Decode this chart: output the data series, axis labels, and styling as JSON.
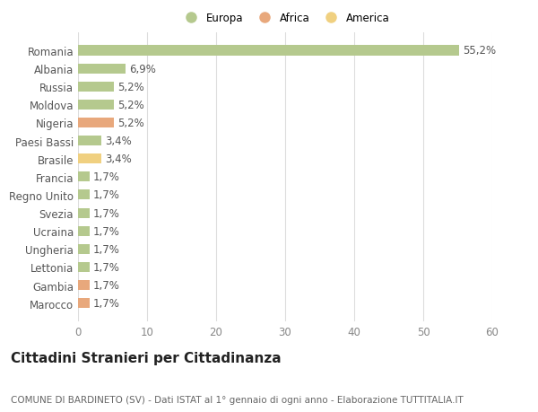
{
  "categories": [
    "Marocco",
    "Gambia",
    "Lettonia",
    "Ungheria",
    "Ucraina",
    "Svezia",
    "Regno Unito",
    "Francia",
    "Brasile",
    "Paesi Bassi",
    "Nigeria",
    "Moldova",
    "Russia",
    "Albania",
    "Romania"
  ],
  "values": [
    1.7,
    1.7,
    1.7,
    1.7,
    1.7,
    1.7,
    1.7,
    1.7,
    3.4,
    3.4,
    5.2,
    5.2,
    5.2,
    6.9,
    55.2
  ],
  "colors": [
    "#e8a87c",
    "#e8a87c",
    "#b5c98e",
    "#b5c98e",
    "#b5c98e",
    "#b5c98e",
    "#b5c98e",
    "#b5c98e",
    "#f0d080",
    "#b5c98e",
    "#e8a87c",
    "#b5c98e",
    "#b5c98e",
    "#b5c98e",
    "#b5c98e"
  ],
  "labels": [
    "1,7%",
    "1,7%",
    "1,7%",
    "1,7%",
    "1,7%",
    "1,7%",
    "1,7%",
    "1,7%",
    "3,4%",
    "3,4%",
    "5,2%",
    "5,2%",
    "5,2%",
    "6,9%",
    "55,2%"
  ],
  "legend_labels": [
    "Europa",
    "Africa",
    "America"
  ],
  "legend_colors": [
    "#b5c98e",
    "#e8a87c",
    "#f0d080"
  ],
  "title": "Cittadini Stranieri per Cittadinanza",
  "subtitle": "COMUNE DI BARDINETO (SV) - Dati ISTAT al 1° gennaio di ogni anno - Elaborazione TUTTITALIA.IT",
  "xlim": [
    0,
    60
  ],
  "xticks": [
    0,
    10,
    20,
    30,
    40,
    50,
    60
  ],
  "background_color": "#ffffff",
  "bar_height": 0.55,
  "label_fontsize": 8.5,
  "tick_fontsize": 8.5,
  "title_fontsize": 11,
  "subtitle_fontsize": 7.5
}
